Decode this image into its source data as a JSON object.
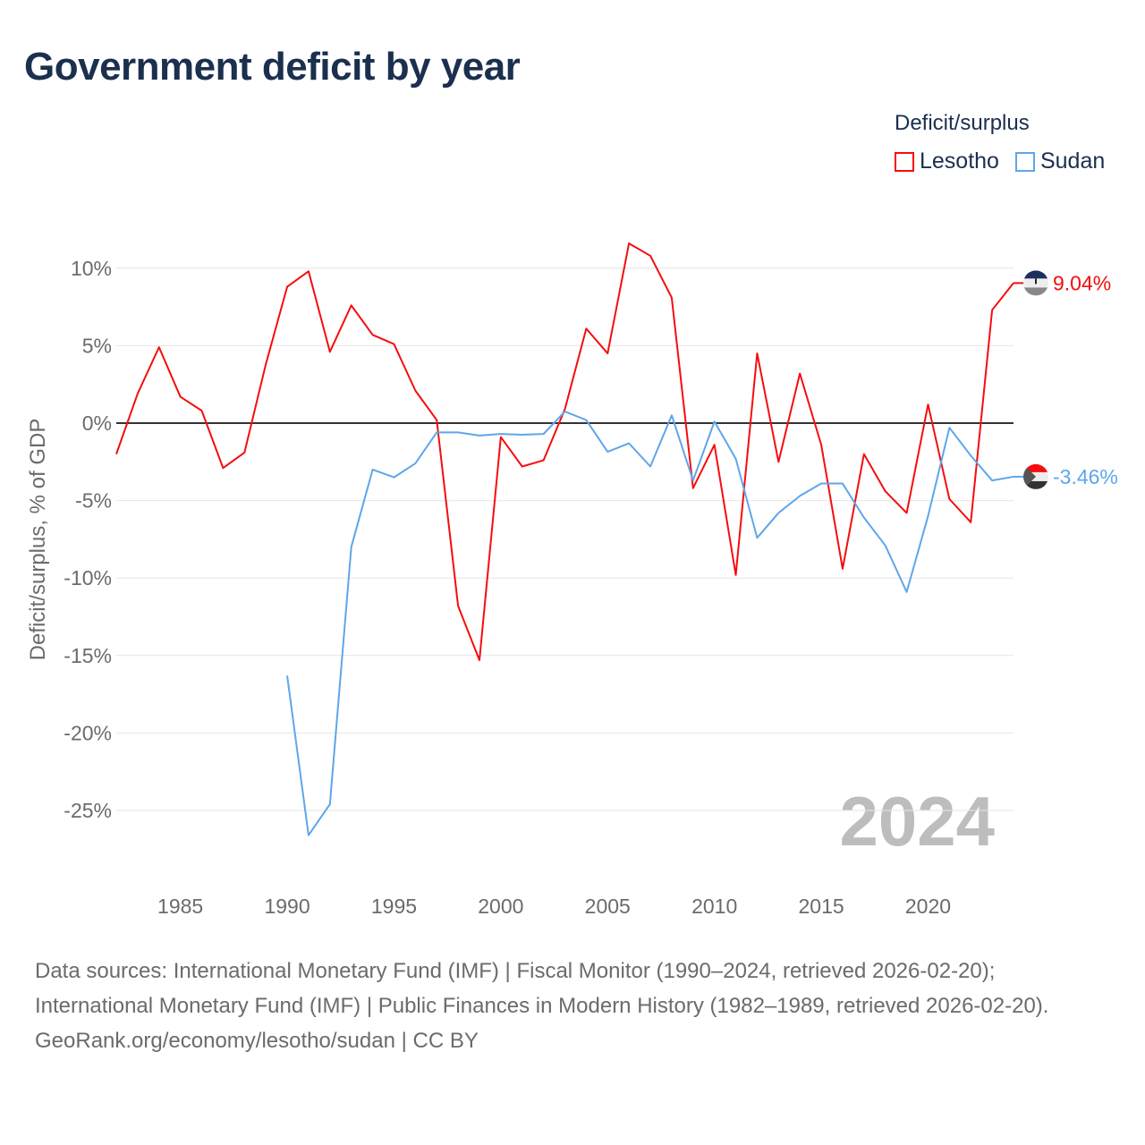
{
  "title": "Government deficit by year",
  "legend": {
    "title": "Deficit/surplus",
    "items": [
      {
        "label": "Lesotho",
        "color": "#f50d0d"
      },
      {
        "label": "Sudan",
        "color": "#5ea6ea"
      }
    ]
  },
  "year_watermark": "2024",
  "footer": {
    "sources": "Data sources: International Monetary Fund (IMF) | Fiscal Monitor (1990–2024, retrieved 2026-02-20); International Monetary Fund (IMF) | Public Finances in Modern History (1982–1989, retrieved 2026-02-20).",
    "credit": "GeoRank.org/economy/lesotho/sudan | CC BY"
  },
  "chart_data": {
    "type": "line",
    "title": "Government deficit by year",
    "xlabel": "",
    "ylabel": "Deficit/surplus, % of GDP",
    "xlim": [
      1982,
      2024
    ],
    "ylim": [
      -28,
      13
    ],
    "x_ticks": [
      1985,
      1990,
      1995,
      2000,
      2005,
      2010,
      2015,
      2020
    ],
    "x_tick_labels": [
      "1985",
      "1990",
      "1995",
      "2000",
      "2005",
      "2010",
      "2015",
      "2020"
    ],
    "y_ticks": [
      10,
      5,
      0,
      -5,
      -10,
      -15,
      -20,
      -25
    ],
    "y_tick_labels": [
      "10%",
      "5%",
      "0%",
      "-5%",
      "-10%",
      "-15%",
      "-20%",
      "-25%"
    ],
    "grid": true,
    "legend_position": "top-right",
    "series": [
      {
        "name": "Lesotho",
        "color": "#f50d0d",
        "end_label": "9.04%",
        "x": [
          1982,
          1983,
          1984,
          1985,
          1986,
          1987,
          1988,
          1989,
          1990,
          1991,
          1992,
          1993,
          1994,
          1995,
          1996,
          1997,
          1998,
          1999,
          2000,
          2001,
          2002,
          2003,
          2004,
          2005,
          2006,
          2007,
          2008,
          2009,
          2010,
          2011,
          2012,
          2013,
          2014,
          2015,
          2016,
          2017,
          2018,
          2019,
          2020,
          2021,
          2022,
          2023,
          2024
        ],
        "values": [
          -2.0,
          1.9,
          4.9,
          1.7,
          0.8,
          -2.9,
          -1.9,
          3.8,
          8.8,
          9.8,
          4.6,
          7.6,
          5.7,
          5.1,
          2.1,
          0.2,
          -11.8,
          -15.3,
          -0.9,
          -2.8,
          -2.4,
          0.9,
          6.1,
          4.5,
          11.6,
          10.8,
          8.1,
          -4.2,
          -1.4,
          -9.8,
          4.5,
          -2.5,
          3.2,
          -1.4,
          -9.4,
          -2.0,
          -4.4,
          -5.8,
          1.2,
          -4.9,
          -6.4,
          7.3,
          9.04
        ]
      },
      {
        "name": "Sudan",
        "color": "#5ea6ea",
        "end_label": "-3.46%",
        "x": [
          1990,
          1991,
          1992,
          1993,
          1994,
          1995,
          1996,
          1997,
          1998,
          1999,
          2000,
          2001,
          2002,
          2003,
          2004,
          2005,
          2006,
          2007,
          2008,
          2009,
          2010,
          2011,
          2012,
          2013,
          2014,
          2015,
          2016,
          2017,
          2018,
          2019,
          2020,
          2021,
          2022,
          2023,
          2024
        ],
        "values": [
          -16.3,
          -26.6,
          -24.6,
          -8.0,
          -3.0,
          -3.5,
          -2.6,
          -0.6,
          -0.6,
          -0.8,
          -0.7,
          -0.75,
          -0.7,
          0.75,
          0.2,
          -1.85,
          -1.3,
          -2.8,
          0.5,
          -3.7,
          0.1,
          -2.3,
          -7.4,
          -5.8,
          -4.7,
          -3.9,
          -3.9,
          -6.1,
          -7.9,
          -10.9,
          -6.0,
          -0.3,
          -2.1,
          -3.7,
          -3.46
        ]
      }
    ]
  }
}
